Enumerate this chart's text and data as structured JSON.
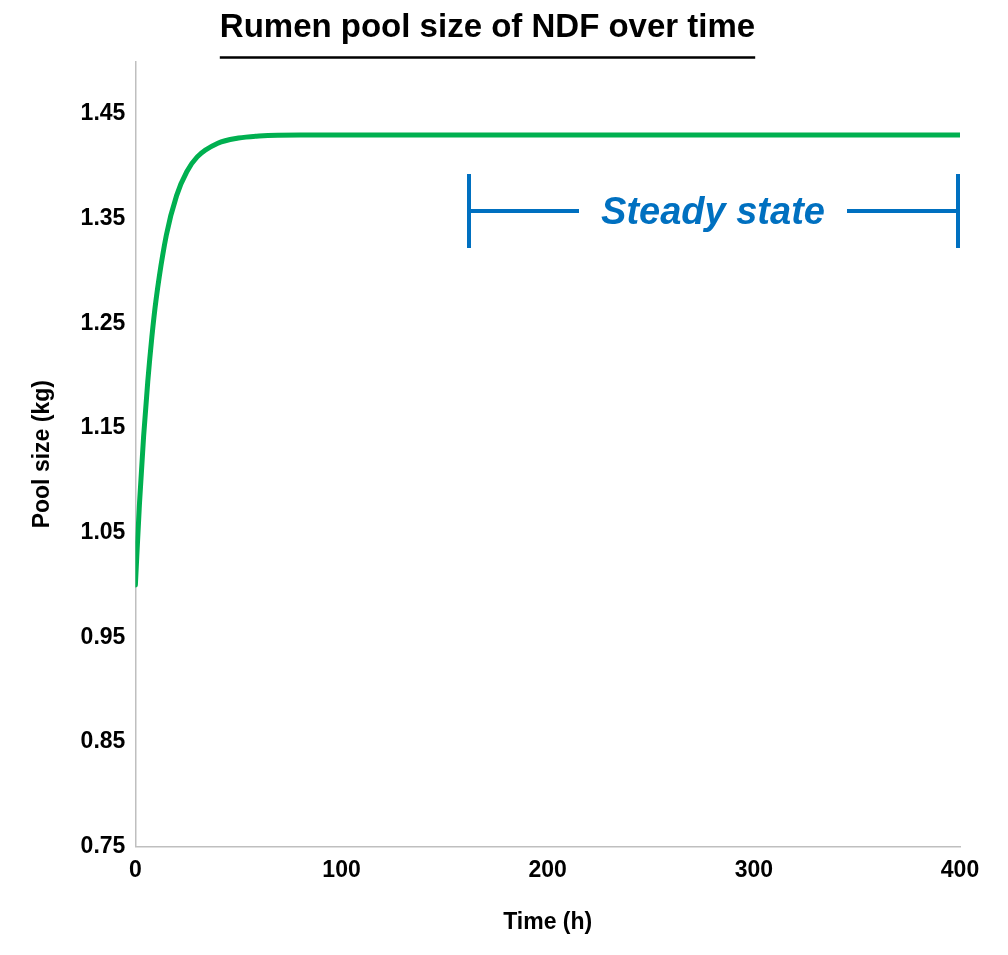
{
  "chart_data": {
    "type": "line",
    "title": "Rumen pool size of NDF over time",
    "xlabel": "Time (h)",
    "ylabel": "Pool size (kg)",
    "x": [
      0,
      2,
      4,
      6,
      8,
      10,
      15,
      20,
      25,
      30,
      40,
      50,
      60,
      80,
      100,
      150,
      200,
      300,
      400
    ],
    "series": [
      {
        "color": "#00b050",
        "values": [
          1.0,
          1.078,
          1.142,
          1.194,
          1.237,
          1.272,
          1.334,
          1.372,
          1.395,
          1.409,
          1.422,
          1.427,
          1.429,
          1.43,
          1.43,
          1.43,
          1.43,
          1.43,
          1.43
        ]
      }
    ],
    "xlim": [
      0,
      400
    ],
    "xticks": [
      0,
      100,
      200,
      300,
      400
    ],
    "ylim": [
      0.75,
      1.5
    ],
    "yticks": [
      0.75,
      0.85,
      0.95,
      1.05,
      1.15,
      1.25,
      1.35,
      1.45
    ],
    "annotations": [
      "Steady state"
    ],
    "grid": false,
    "legend": false,
    "marker": "none",
    "line_style": "solid"
  }
}
